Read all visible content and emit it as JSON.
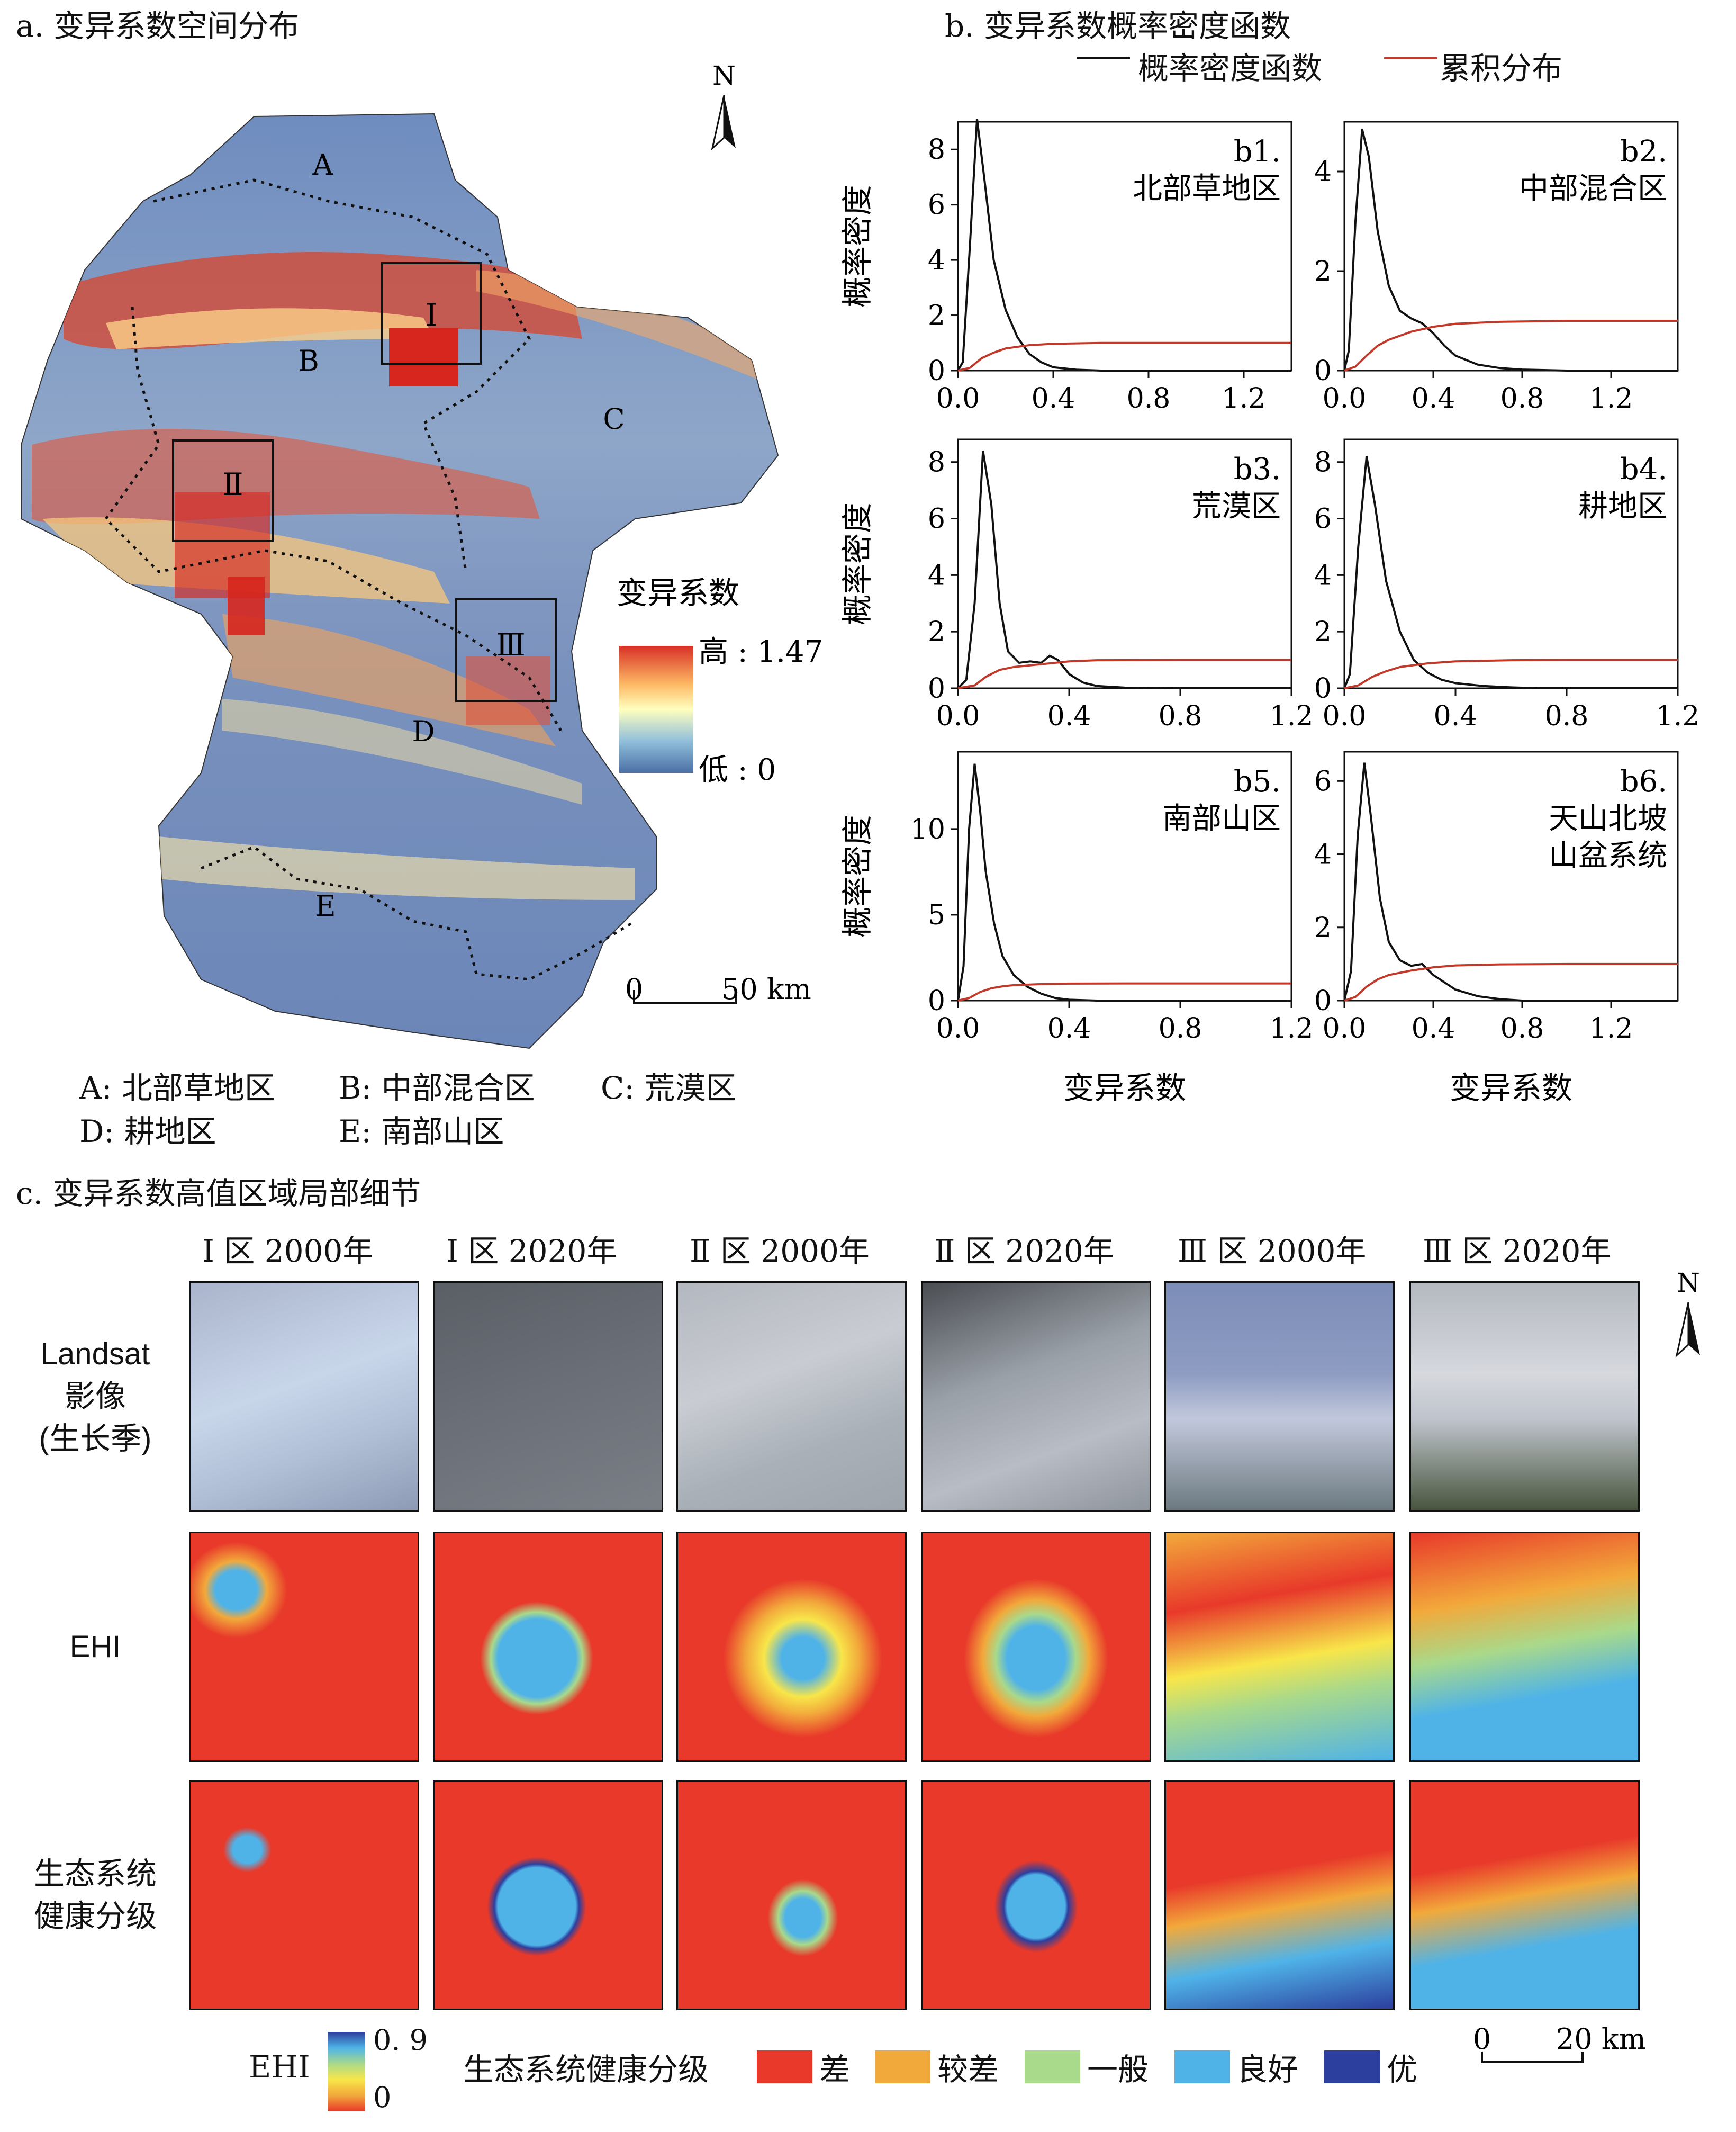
{
  "panel_a": {
    "title": "a. 变异系数空间分布",
    "north": "N",
    "regions": [
      "A",
      "B",
      "C",
      "D",
      "E"
    ],
    "boxes": [
      "Ⅰ",
      "Ⅱ",
      "Ⅲ"
    ],
    "legend": {
      "title": "变异系数",
      "high": "高 : 1.47",
      "low": "低 : 0",
      "colors": [
        "#d73027",
        "#fdb863",
        "#ffffbf",
        "#91bfdb",
        "#4a6fa5"
      ]
    },
    "scale": {
      "zero": "0",
      "label": "50 km"
    },
    "key": [
      "A: 北部草地区",
      "B: 中部混合区",
      "C: 荒漠区",
      "D: 耕地区",
      "E: 南部山区"
    ]
  },
  "panel_b": {
    "title": "b. 变异系数概率密度函数",
    "legend": {
      "pdf": "概率密度函数",
      "cdf": "累积分布",
      "pdf_color": "#111111",
      "cdf_color": "#c0392b"
    },
    "ylabel": "概率密度",
    "xlabel": "变异系数"
  },
  "chart_data": [
    {
      "type": "line",
      "title": "b1. 北部草地区",
      "xlim": [
        0,
        1.4
      ],
      "ylim": [
        0,
        9
      ],
      "xticks": [
        "0.0",
        "0.4",
        "0.8",
        "1.2"
      ],
      "yticks": [
        "0",
        "2",
        "4",
        "6",
        "8"
      ],
      "series": [
        {
          "name": "概率密度函数",
          "x": [
            0.0,
            0.02,
            0.05,
            0.08,
            0.11,
            0.15,
            0.2,
            0.25,
            0.3,
            0.35,
            0.4,
            0.5,
            0.6,
            1.0,
            1.4
          ],
          "y": [
            0,
            0.3,
            4.5,
            9.1,
            7.0,
            4.0,
            2.2,
            1.2,
            0.6,
            0.3,
            0.12,
            0.03,
            0.0,
            0,
            0
          ]
        },
        {
          "name": "累积分布",
          "x": [
            0.0,
            0.05,
            0.1,
            0.15,
            0.2,
            0.3,
            0.4,
            0.6,
            1.0,
            1.4
          ],
          "y": [
            0,
            0.1,
            0.45,
            0.65,
            0.8,
            0.92,
            0.97,
            1.0,
            1.0,
            1.0
          ]
        }
      ]
    },
    {
      "type": "line",
      "title": "b2. 中部混合区",
      "xlim": [
        0,
        1.5
      ],
      "ylim": [
        0,
        5
      ],
      "xticks": [
        "0.0",
        "0.4",
        "0.8",
        "1.2"
      ],
      "yticks": [
        "0",
        "2",
        "4"
      ],
      "series": [
        {
          "name": "概率密度函数",
          "x": [
            0.0,
            0.02,
            0.05,
            0.08,
            0.11,
            0.15,
            0.2,
            0.25,
            0.3,
            0.35,
            0.4,
            0.45,
            0.5,
            0.6,
            0.7,
            0.8,
            1.0,
            1.5
          ],
          "y": [
            0,
            0.4,
            3.0,
            4.85,
            4.3,
            2.8,
            1.7,
            1.2,
            1.05,
            0.95,
            0.75,
            0.5,
            0.3,
            0.12,
            0.05,
            0.02,
            0,
            0
          ]
        },
        {
          "name": "累积分布",
          "x": [
            0.0,
            0.05,
            0.1,
            0.15,
            0.2,
            0.3,
            0.4,
            0.5,
            0.7,
            1.0,
            1.5
          ],
          "y": [
            0,
            0.08,
            0.3,
            0.5,
            0.62,
            0.78,
            0.88,
            0.94,
            0.98,
            1.0,
            1.0
          ]
        }
      ]
    },
    {
      "type": "line",
      "title": "b3. 荒漠区",
      "xlim": [
        0,
        1.2
      ],
      "ylim": [
        0,
        8.8
      ],
      "xticks": [
        "0.0",
        "0.4",
        "0.8",
        "1.2"
      ],
      "yticks": [
        "0",
        "2",
        "4",
        "6",
        "8"
      ],
      "series": [
        {
          "name": "概率密度函数",
          "x": [
            0.0,
            0.03,
            0.06,
            0.09,
            0.12,
            0.15,
            0.18,
            0.22,
            0.26,
            0.3,
            0.33,
            0.36,
            0.4,
            0.45,
            0.5,
            0.6,
            0.8,
            1.2
          ],
          "y": [
            0,
            0.3,
            3.0,
            8.4,
            6.5,
            3.0,
            1.3,
            0.9,
            0.95,
            0.9,
            1.15,
            1.0,
            0.5,
            0.2,
            0.08,
            0.02,
            0,
            0
          ]
        },
        {
          "name": "累积分布",
          "x": [
            0.0,
            0.06,
            0.1,
            0.15,
            0.2,
            0.3,
            0.4,
            0.5,
            0.8,
            1.2
          ],
          "y": [
            0,
            0.1,
            0.4,
            0.65,
            0.75,
            0.85,
            0.95,
            0.99,
            1.0,
            1.0
          ]
        }
      ]
    },
    {
      "type": "line",
      "title": "b4. 耕地区",
      "xlim": [
        0,
        1.2
      ],
      "ylim": [
        0,
        8.8
      ],
      "xticks": [
        "0.0",
        "0.4",
        "0.8",
        "1.2"
      ],
      "yticks": [
        "0",
        "2",
        "4",
        "6",
        "8"
      ],
      "series": [
        {
          "name": "概率密度函数",
          "x": [
            0.0,
            0.02,
            0.05,
            0.08,
            0.11,
            0.15,
            0.2,
            0.25,
            0.3,
            0.35,
            0.4,
            0.5,
            0.6,
            0.7,
            1.2
          ],
          "y": [
            0,
            0.5,
            5.0,
            8.2,
            6.5,
            3.8,
            2.0,
            1.0,
            0.55,
            0.3,
            0.18,
            0.08,
            0.03,
            0,
            0
          ]
        },
        {
          "name": "累积分布",
          "x": [
            0.0,
            0.05,
            0.1,
            0.15,
            0.2,
            0.3,
            0.4,
            0.6,
            0.8,
            1.2
          ],
          "y": [
            0,
            0.1,
            0.4,
            0.6,
            0.75,
            0.88,
            0.95,
            0.99,
            1.0,
            1.0
          ]
        }
      ]
    },
    {
      "type": "line",
      "title": "b5. 南部山区",
      "xlim": [
        0,
        1.2
      ],
      "ylim": [
        0,
        14.5
      ],
      "xticks": [
        "0.0",
        "0.4",
        "0.8",
        "1.2"
      ],
      "yticks": [
        "0",
        "5",
        "10"
      ],
      "series": [
        {
          "name": "概率密度函数",
          "x": [
            0.0,
            0.02,
            0.04,
            0.06,
            0.08,
            0.1,
            0.13,
            0.16,
            0.2,
            0.25,
            0.3,
            0.35,
            0.4,
            0.5,
            1.2
          ],
          "y": [
            0,
            2.0,
            10.0,
            13.8,
            11.0,
            7.5,
            4.5,
            2.6,
            1.5,
            0.8,
            0.4,
            0.15,
            0.05,
            0,
            0
          ]
        },
        {
          "name": "累积分布",
          "x": [
            0.0,
            0.04,
            0.08,
            0.12,
            0.16,
            0.2,
            0.3,
            0.4,
            0.6,
            1.2
          ],
          "y": [
            0,
            0.15,
            0.5,
            0.72,
            0.83,
            0.9,
            0.96,
            0.99,
            1.0,
            1.0
          ]
        }
      ]
    },
    {
      "type": "line",
      "title": "b6. 天山北坡 山盆系统",
      "xlim": [
        0,
        1.5
      ],
      "ylim": [
        0,
        6.8
      ],
      "xticks": [
        "0.0",
        "0.4",
        "0.8",
        "1.2"
      ],
      "yticks": [
        "0",
        "2",
        "4",
        "6"
      ],
      "series": [
        {
          "name": "概率密度函数",
          "x": [
            0.0,
            0.03,
            0.06,
            0.09,
            0.12,
            0.16,
            0.2,
            0.25,
            0.3,
            0.35,
            0.4,
            0.5,
            0.6,
            0.7,
            0.8,
            1.5
          ],
          "y": [
            0,
            0.8,
            4.5,
            6.5,
            5.0,
            2.8,
            1.6,
            1.1,
            0.95,
            1.0,
            0.7,
            0.3,
            0.12,
            0.04,
            0,
            0
          ]
        },
        {
          "name": "累积分布",
          "x": [
            0.0,
            0.05,
            0.1,
            0.15,
            0.2,
            0.3,
            0.4,
            0.5,
            0.7,
            1.0,
            1.5
          ],
          "y": [
            0,
            0.1,
            0.38,
            0.58,
            0.7,
            0.82,
            0.91,
            0.96,
            0.99,
            1.0,
            1.0
          ]
        }
      ]
    }
  ],
  "panel_c": {
    "title": "c. 变异系数高值区域局部细节",
    "columns": [
      "Ⅰ 区 2000年",
      "Ⅰ 区 2020年",
      "Ⅱ 区 2000年",
      "Ⅱ 区 2020年",
      "Ⅲ 区 2000年",
      "Ⅲ 区 2020年"
    ],
    "rows": [
      "Landsat 影像 (生长季)",
      "EHI",
      "生态系统 健康分级"
    ],
    "north": "N",
    "ehi_legend": {
      "label": "EHI",
      "max": "0. 9",
      "min": "0"
    },
    "grade_legend": {
      "title": "生态系统健康分级",
      "items": [
        {
          "label": "差",
          "color": "#e8392a"
        },
        {
          "label": "较差",
          "color": "#f2a93b"
        },
        {
          "label": "一般",
          "color": "#a9d98a"
        },
        {
          "label": "良好",
          "color": "#4fb3e8"
        },
        {
          "label": "优",
          "color": "#2c3f9e"
        }
      ]
    },
    "scale": {
      "zero": "0",
      "label": "20 km"
    }
  }
}
